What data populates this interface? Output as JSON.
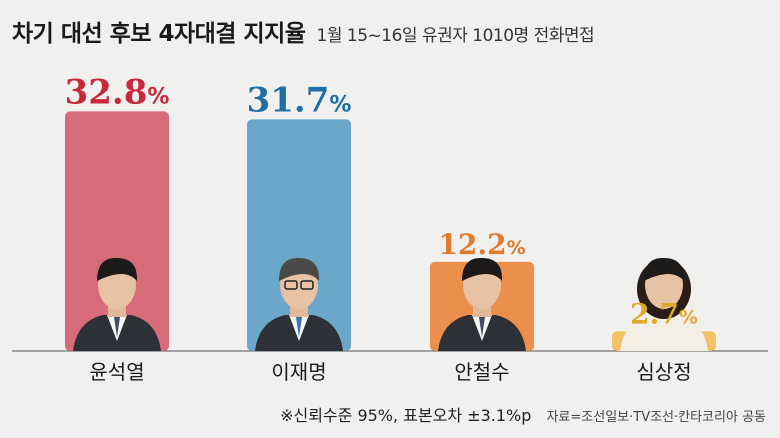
{
  "header": {
    "title": "차기 대선 후보 4자대결 지지율",
    "subtitle": "1월 15~16일 유권자 1010명 전화면접"
  },
  "chart_data": {
    "type": "bar",
    "categories": [
      "윤석열",
      "이재명",
      "안철수",
      "심상정"
    ],
    "values": [
      32.8,
      31.7,
      12.2,
      2.7
    ],
    "value_suffix": "%",
    "bar_colors": [
      "#d76b7a",
      "#6aa7c9",
      "#ec8f4d",
      "#f1c266"
    ],
    "label_colors": [
      "#c8283c",
      "#1f6fa6",
      "#e07a2e",
      "#e0a92a"
    ],
    "ylim": [
      0,
      36
    ],
    "grid": false,
    "legend": "none"
  },
  "footer": {
    "note": "※신뢰수준 95%, 표본오차 ±3.1%p",
    "source": "자료=조선일보·TV조선·칸타코리아 공동"
  }
}
